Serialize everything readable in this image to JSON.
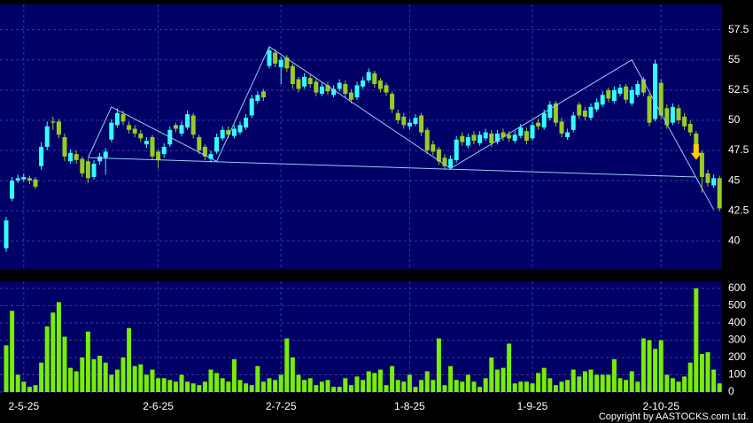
{
  "chart_data": {
    "type": "candlestick",
    "categories": [
      null,
      null,
      null,
      "2-5-25",
      null,
      null,
      null,
      null,
      null,
      null,
      null,
      null,
      null,
      null,
      null,
      null,
      null,
      null,
      null,
      null,
      null,
      null,
      null,
      null,
      null,
      null,
      "2-6-25",
      null,
      null,
      null,
      null,
      null,
      null,
      null,
      null,
      null,
      null,
      null,
      null,
      null,
      null,
      null,
      null,
      null,
      null,
      null,
      null,
      "2-7-25",
      null,
      null,
      null,
      null,
      null,
      null,
      null,
      null,
      null,
      null,
      null,
      null,
      null,
      null,
      null,
      null,
      null,
      null,
      null,
      null,
      null,
      "1-8-25",
      null,
      null,
      null,
      null,
      null,
      null,
      null,
      null,
      null,
      null,
      null,
      null,
      null,
      null,
      null,
      null,
      null,
      null,
      null,
      null,
      "1-9-25",
      null,
      null,
      null,
      null,
      null,
      null,
      null,
      null,
      null,
      null,
      null,
      null,
      null,
      null,
      null,
      null,
      null,
      null,
      null,
      null,
      null,
      "2-10-25",
      null,
      null,
      null,
      null,
      null,
      null,
      null,
      null,
      null,
      null
    ],
    "open": [
      39.4,
      43.5,
      45.0,
      45.1,
      45.2,
      45.1,
      46.2,
      47.8,
      49.9,
      49.9,
      48.6,
      46.6,
      47.2,
      46.8,
      46.6,
      45.3,
      46.6,
      46.9,
      48.4,
      49.6,
      50.5,
      49.6,
      49.3,
      48.9,
      48.0,
      48.6,
      47.4,
      47.2,
      48.0,
      49.6,
      48.9,
      49.4,
      50.4,
      48.6,
      47.8,
      46.8,
      47.4,
      48.5,
      49.2,
      48.7,
      49.0,
      49.4,
      50.4,
      51.6,
      52.4,
      54.5,
      55.6,
      54.4,
      55.2,
      54.5,
      53.4,
      52.8,
      53.5,
      53.2,
      52.2,
      52.9,
      52.1,
      52.6,
      53.0,
      52.3,
      51.9,
      52.8,
      53.3,
      53.9,
      53.3,
      52.9,
      52.2,
      50.6,
      50.3,
      49.5,
      49.7,
      50.4,
      49.2,
      48.0,
      47.6,
      46.9,
      46.1,
      46.7,
      48.7,
      47.9,
      48.8,
      48.1,
      48.5,
      48.9,
      48.2,
      49.0,
      48.8,
      48.3,
      48.7,
      49.1,
      48.5,
      49.8,
      49.4,
      50.2,
      51.4,
      49.9,
      48.6,
      49.2,
      51.3,
      50.8,
      50.2,
      50.9,
      51.3,
      52.5,
      51.6,
      52.2,
      52.8,
      51.4,
      52.1,
      53.4,
      52.0,
      50.1,
      53.1,
      51.0,
      49.8,
      51.0,
      50.3,
      49.7,
      48.9,
      47.3,
      45.6,
      44.6,
      45.2
    ],
    "high": [
      42.0,
      45.3,
      45.5,
      45.6,
      45.4,
      45.3,
      48.2,
      49.9,
      50.3,
      50.1,
      48.9,
      47.6,
      47.5,
      47.0,
      46.8,
      46.7,
      47.3,
      47.7,
      50.1,
      51.0,
      50.8,
      49.9,
      49.6,
      49.2,
      48.6,
      48.8,
      47.6,
      48.1,
      49.5,
      49.8,
      49.9,
      50.8,
      50.6,
      48.8,
      48.0,
      47.5,
      48.9,
      49.5,
      49.5,
      49.6,
      49.9,
      50.5,
      52.1,
      52.4,
      52.6,
      56.1,
      55.9,
      55.3,
      55.4,
      54.7,
      53.6,
      53.9,
      53.8,
      53.4,
      53.1,
      53.2,
      52.9,
      53.4,
      53.3,
      52.6,
      53.2,
      53.6,
      54.3,
      54.1,
      53.5,
      53.1,
      52.4,
      50.9,
      50.6,
      50.1,
      50.5,
      50.6,
      49.4,
      48.3,
      47.8,
      47.2,
      47.1,
      48.7,
      49.0,
      48.9,
      49.1,
      49.1,
      49.3,
      49.2,
      49.2,
      49.3,
      49.1,
      49.1,
      49.7,
      49.4,
      49.9,
      50.1,
      50.9,
      51.6,
      51.6,
      50.2,
      49.3,
      50.7,
      51.5,
      51.1,
      51.4,
      51.8,
      52.4,
      52.7,
      52.8,
      53.0,
      53.0,
      52.8,
      53.3,
      53.6,
      52.2,
      55.0,
      53.4,
      51.3,
      51.4,
      51.3,
      50.6,
      50.0,
      49.1,
      47.5,
      45.9,
      45.5,
      45.4
    ],
    "low": [
      39.1,
      43.3,
      44.8,
      44.9,
      44.7,
      44.3,
      45.9,
      47.5,
      49.2,
      48.5,
      46.6,
      46.4,
      46.4,
      45.3,
      44.8,
      45.1,
      46.3,
      45.5,
      48.2,
      49.4,
      49.6,
      48.9,
      48.6,
      48.2,
      47.7,
      46.7,
      46.0,
      46.9,
      47.8,
      49.0,
      48.7,
      49.2,
      48.5,
      47.2,
      46.7,
      46.5,
      47.2,
      48.3,
      48.5,
      48.5,
      48.8,
      49.2,
      50.2,
      51.4,
      51.6,
      54.3,
      54.4,
      53.0,
      54.0,
      52.6,
      52.3,
      52.6,
      52.7,
      52.0,
      52.0,
      52.1,
      51.9,
      52.4,
      51.9,
      51.4,
      51.7,
      52.6,
      53.1,
      52.7,
      52.3,
      52.0,
      50.6,
      49.7,
      49.3,
      49.2,
      49.5,
      48.7,
      47.2,
      47.1,
      46.3,
      45.9,
      45.9,
      46.5,
      47.9,
      47.7,
      48.0,
      47.9,
      48.3,
      47.8,
      48.0,
      48.3,
      48.2,
      48.1,
      48.5,
      48.0,
      48.3,
      49.2,
      49.2,
      50.0,
      49.5,
      48.6,
      48.4,
      49.0,
      50.1,
      50.0,
      50.0,
      50.7,
      51.1,
      51.5,
      51.4,
      52.0,
      51.4,
      51.2,
      51.9,
      52.0,
      49.5,
      49.9,
      50.1,
      49.3,
      49.6,
      49.7,
      49.2,
      48.7,
      47.1,
      44.0,
      44.5,
      44.4,
      42.5
    ],
    "close": [
      41.7,
      45.0,
      45.2,
      45.3,
      45.0,
      44.5,
      47.8,
      49.5,
      49.8,
      48.8,
      47.0,
      47.3,
      46.7,
      45.6,
      45.2,
      46.4,
      47.0,
      47.4,
      49.8,
      50.6,
      49.9,
      49.2,
      48.9,
      48.5,
      48.3,
      47.0,
      46.7,
      47.8,
      49.2,
      49.3,
      49.6,
      50.5,
      48.8,
      47.5,
      47.0,
      47.2,
      48.6,
      49.2,
      48.8,
      49.3,
      49.6,
      50.2,
      51.8,
      52.1,
      51.9,
      55.8,
      54.7,
      55.0,
      54.3,
      53.0,
      52.6,
      53.6,
      53.0,
      52.3,
      52.8,
      52.4,
      52.6,
      53.1,
      52.2,
      51.7,
      52.9,
      53.3,
      54.0,
      53.0,
      52.6,
      52.3,
      50.9,
      50.0,
      49.6,
      49.8,
      50.2,
      49.0,
      47.5,
      47.4,
      46.6,
      46.2,
      46.8,
      48.4,
      48.2,
      48.6,
      48.3,
      48.8,
      49.0,
      48.1,
      48.9,
      48.6,
      48.5,
      48.8,
      49.4,
      48.3,
      49.6,
      49.5,
      50.6,
      51.3,
      49.8,
      48.9,
      49.0,
      50.4,
      50.4,
      50.3,
      51.1,
      51.5,
      52.1,
      51.8,
      52.5,
      52.7,
      51.7,
      52.5,
      53.0,
      52.3,
      49.8,
      54.7,
      50.4,
      49.6,
      51.1,
      50.0,
      49.5,
      49.0,
      47.4,
      45.3,
      44.8,
      45.2,
      42.7
    ],
    "volume": [
      270,
      470,
      100,
      60,
      30,
      40,
      170,
      380,
      460,
      520,
      320,
      140,
      120,
      200,
      350,
      190,
      210,
      170,
      100,
      130,
      200,
      370,
      150,
      160,
      100,
      130,
      80,
      80,
      70,
      60,
      100,
      60,
      50,
      40,
      60,
      130,
      110,
      80,
      60,
      190,
      70,
      50,
      40,
      150,
      60,
      80,
      70,
      100,
      310,
      200,
      100,
      70,
      80,
      40,
      60,
      70,
      30,
      30,
      80,
      40,
      90,
      70,
      120,
      110,
      130,
      40,
      150,
      70,
      60,
      100,
      30,
      70,
      120,
      70,
      310,
      40,
      150,
      70,
      60,
      100,
      60,
      30,
      80,
      200,
      130,
      140,
      280,
      50,
      60,
      60,
      50,
      110,
      140,
      80,
      40,
      60,
      70,
      130,
      90,
      120,
      130,
      100,
      100,
      100,
      190,
      80,
      70,
      120,
      60,
      310,
      300,
      250,
      300,
      100,
      80,
      60,
      90,
      170,
      600,
      220,
      230,
      130,
      50
    ],
    "up_color": "#33ffff",
    "down_color": "#99cc22",
    "volume_color": "#77ee00",
    "ylim": [
      37.6,
      59.6
    ],
    "yticks": [
      40,
      42.5,
      45,
      47.5,
      50,
      52.5,
      55,
      57.5
    ],
    "volume_ylim": [
      0,
      640
    ],
    "volume_yticks": [
      0,
      100,
      200,
      300,
      400,
      500,
      600
    ],
    "grid": true,
    "trendlines": [
      {
        "color": "#99ccee",
        "x": [
          14,
          18,
          36,
          45,
          76,
          107,
          121
        ],
        "y": [
          46.9,
          51.1,
          46.6,
          56.1,
          46.0,
          55.0,
          42.6
        ]
      },
      {
        "color": "#99ccee",
        "x": [
          14,
          118
        ],
        "y": [
          46.9,
          45.3
        ]
      }
    ],
    "signal": {
      "x": 118,
      "y": 47.3,
      "color": "#ffcc00"
    },
    "copyright": "Copyright by AASTOCKS.com Ltd."
  }
}
